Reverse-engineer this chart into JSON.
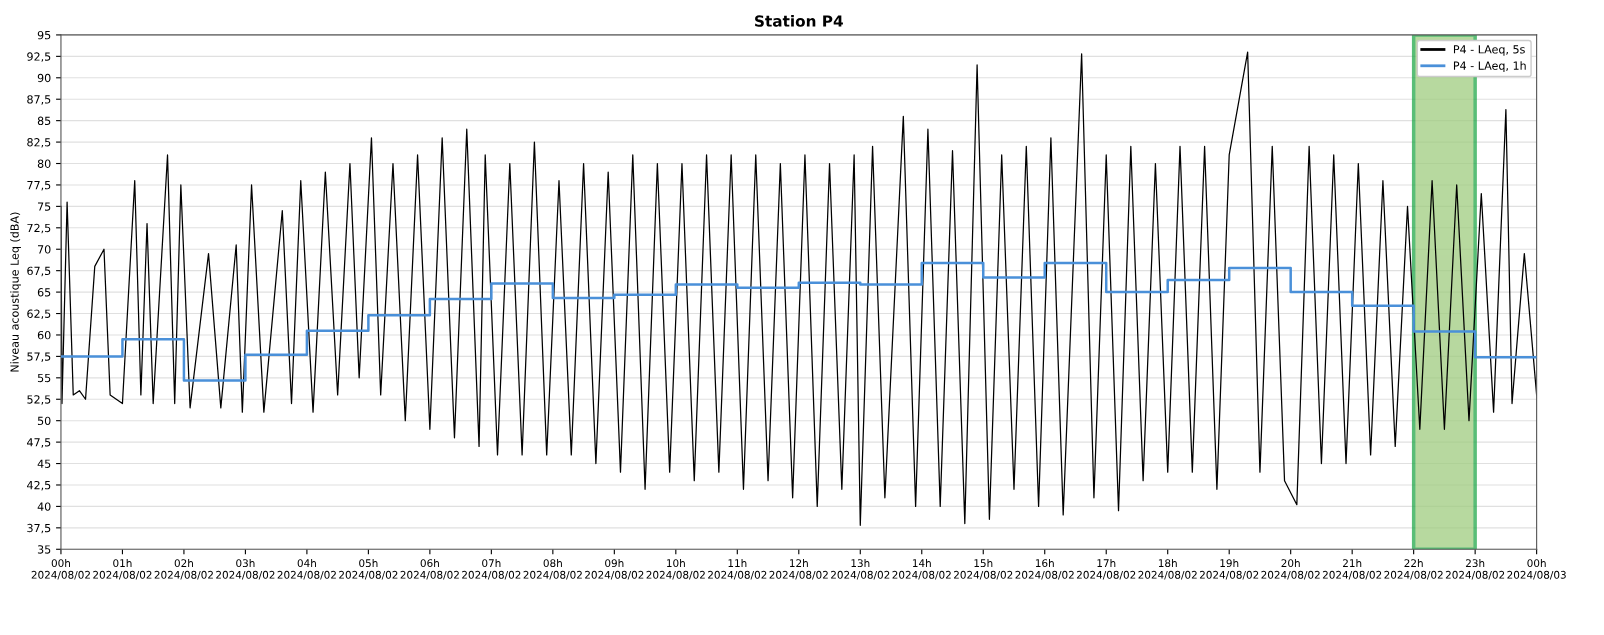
{
  "chart_data": {
    "type": "line",
    "title": "Station P4",
    "ylabel": "Niveau acoustique Leq (dBA)",
    "xlim": [
      "2024-08-02T00:00",
      "2024-08-03T00:00"
    ],
    "ylim": [
      35,
      95
    ],
    "xticks": [
      {
        "value": "2024-08-02T00:00",
        "label": "00h\n2024/08/02"
      },
      {
        "value": "2024-08-02T01:00",
        "label": "01h\n2024/08/02"
      },
      {
        "value": "2024-08-02T02:00",
        "label": "02h\n2024/08/02"
      },
      {
        "value": "2024-08-02T03:00",
        "label": "03h\n2024/08/02"
      },
      {
        "value": "2024-08-02T04:00",
        "label": "04h\n2024/08/02"
      },
      {
        "value": "2024-08-02T05:00",
        "label": "05h\n2024/08/02"
      },
      {
        "value": "2024-08-02T06:00",
        "label": "06h\n2024/08/02"
      },
      {
        "value": "2024-08-02T07:00",
        "label": "07h\n2024/08/02"
      },
      {
        "value": "2024-08-02T08:00",
        "label": "08h\n2024/08/02"
      },
      {
        "value": "2024-08-02T09:00",
        "label": "09h\n2024/08/02"
      },
      {
        "value": "2024-08-02T10:00",
        "label": "10h\n2024/08/02"
      },
      {
        "value": "2024-08-02T11:00",
        "label": "11h\n2024/08/02"
      },
      {
        "value": "2024-08-02T12:00",
        "label": "12h\n2024/08/02"
      },
      {
        "value": "2024-08-02T13:00",
        "label": "13h\n2024/08/02"
      },
      {
        "value": "2024-08-02T14:00",
        "label": "14h\n2024/08/02"
      },
      {
        "value": "2024-08-02T15:00",
        "label": "15h\n2024/08/02"
      },
      {
        "value": "2024-08-02T16:00",
        "label": "16h\n2024/08/02"
      },
      {
        "value": "2024-08-02T17:00",
        "label": "17h\n2024/08/02"
      },
      {
        "value": "2024-08-02T18:00",
        "label": "18h\n2024/08/02"
      },
      {
        "value": "2024-08-02T19:00",
        "label": "19h\n2024/08/02"
      },
      {
        "value": "2024-08-02T20:00",
        "label": "20h\n2024/08/02"
      },
      {
        "value": "2024-08-02T21:00",
        "label": "21h\n2024/08/02"
      },
      {
        "value": "2024-08-02T22:00",
        "label": "22h\n2024/08/02"
      },
      {
        "value": "2024-08-02T23:00",
        "label": "23h\n2024/08/02"
      },
      {
        "value": "2024-08-03T00:00",
        "label": "00h\n2024/08/03"
      }
    ],
    "yticks": [
      35,
      {
        "value": 37.5,
        "label": "37,5"
      },
      40,
      {
        "value": 42.5,
        "label": "42,5"
      },
      45,
      {
        "value": 47.5,
        "label": "47,5"
      },
      50,
      {
        "value": 52.5,
        "label": "52,5"
      },
      55,
      {
        "value": 57.5,
        "label": "57,5"
      },
      60,
      {
        "value": 62.5,
        "label": "62,5"
      },
      65,
      {
        "value": 67.5,
        "label": "67,5"
      },
      70,
      {
        "value": 72.5,
        "label": "72,5"
      },
      75,
      {
        "value": 77.5,
        "label": "77,5"
      },
      80,
      {
        "value": 82.5,
        "label": "82,5"
      },
      85,
      {
        "value": 87.5,
        "label": "87,5"
      },
      90,
      {
        "value": 92.5,
        "label": "92,5"
      },
      95
    ],
    "grid": "y",
    "legend": "top right",
    "bands": [
      {
        "axis": "x",
        "from": "2024-08-02T22:00",
        "to": "2024-08-02T23:00",
        "color": "#9fcc7f"
      }
    ],
    "series": [
      {
        "name": "P4 - LAeq, 5s",
        "color": "#000000",
        "x": [
          "2024-08-02T00:00",
          "2024-08-02T00:01",
          "2024-08-02T00:06",
          "2024-08-02T00:12",
          "2024-08-02T00:18",
          "2024-08-02T00:24",
          "2024-08-02T00:33",
          "2024-08-02T00:42",
          "2024-08-02T00:48",
          "2024-08-02T01:00",
          "2024-08-02T01:12",
          "2024-08-02T01:18",
          "2024-08-02T01:24",
          "2024-08-02T01:30",
          "2024-08-02T01:44",
          "2024-08-02T01:51",
          "2024-08-02T01:57",
          "2024-08-02T02:06",
          "2024-08-02T02:24",
          "2024-08-02T02:36",
          "2024-08-02T02:51",
          "2024-08-02T02:57",
          "2024-08-02T03:06",
          "2024-08-02T03:18",
          "2024-08-02T03:36",
          "2024-08-02T03:45",
          "2024-08-02T03:54",
          "2024-08-02T04:06",
          "2024-08-02T04:18",
          "2024-08-02T04:30",
          "2024-08-02T04:42",
          "2024-08-02T04:51",
          "2024-08-02T05:03",
          "2024-08-02T05:12",
          "2024-08-02T05:24",
          "2024-08-02T05:36",
          "2024-08-02T05:48",
          "2024-08-02T06:00",
          "2024-08-02T06:12",
          "2024-08-02T06:24",
          "2024-08-02T06:36",
          "2024-08-02T06:48",
          "2024-08-02T06:54",
          "2024-08-02T07:06",
          "2024-08-02T07:18",
          "2024-08-02T07:30",
          "2024-08-02T07:42",
          "2024-08-02T07:54",
          "2024-08-02T08:06",
          "2024-08-02T08:18",
          "2024-08-02T08:30",
          "2024-08-02T08:42",
          "2024-08-02T08:54",
          "2024-08-02T09:06",
          "2024-08-02T09:18",
          "2024-08-02T09:30",
          "2024-08-02T09:42",
          "2024-08-02T09:54",
          "2024-08-02T10:06",
          "2024-08-02T10:18",
          "2024-08-02T10:30",
          "2024-08-02T10:42",
          "2024-08-02T10:54",
          "2024-08-02T11:06",
          "2024-08-02T11:18",
          "2024-08-02T11:30",
          "2024-08-02T11:42",
          "2024-08-02T11:54",
          "2024-08-02T12:06",
          "2024-08-02T12:18",
          "2024-08-02T12:30",
          "2024-08-02T12:42",
          "2024-08-02T12:54",
          "2024-08-02T13:00",
          "2024-08-02T13:12",
          "2024-08-02T13:24",
          "2024-08-02T13:42",
          "2024-08-02T13:54",
          "2024-08-02T14:06",
          "2024-08-02T14:18",
          "2024-08-02T14:30",
          "2024-08-02T14:42",
          "2024-08-02T14:54",
          "2024-08-02T15:06",
          "2024-08-02T15:18",
          "2024-08-02T15:30",
          "2024-08-02T15:42",
          "2024-08-02T15:54",
          "2024-08-02T16:06",
          "2024-08-02T16:18",
          "2024-08-02T16:36",
          "2024-08-02T16:48",
          "2024-08-02T17:00",
          "2024-08-02T17:12",
          "2024-08-02T17:24",
          "2024-08-02T17:36",
          "2024-08-02T17:48",
          "2024-08-02T18:00",
          "2024-08-02T18:12",
          "2024-08-02T18:24",
          "2024-08-02T18:36",
          "2024-08-02T18:48",
          "2024-08-02T19:00",
          "2024-08-02T19:18",
          "2024-08-02T19:30",
          "2024-08-02T19:42",
          "2024-08-02T19:54",
          "2024-08-02T20:06",
          "2024-08-02T20:18",
          "2024-08-02T20:30",
          "2024-08-02T20:42",
          "2024-08-02T20:54",
          "2024-08-02T21:06",
          "2024-08-02T21:18",
          "2024-08-02T21:30",
          "2024-08-02T21:42",
          "2024-08-02T21:54",
          "2024-08-02T22:06",
          "2024-08-02T22:18",
          "2024-08-02T22:30",
          "2024-08-02T22:42",
          "2024-08-02T22:54",
          "2024-08-02T23:06",
          "2024-08-02T23:18",
          "2024-08-02T23:30",
          "2024-08-02T23:36",
          "2024-08-02T23:48",
          "2024-08-03T00:00"
        ],
        "values": [
          75,
          52,
          75.5,
          53,
          53.5,
          52.5,
          68,
          70,
          53,
          52,
          78,
          53,
          73,
          52,
          81,
          52,
          77.5,
          51.5,
          69.5,
          51.5,
          70.5,
          51,
          77.5,
          51,
          74.5,
          52,
          78,
          51,
          79,
          53,
          80,
          55,
          83,
          53,
          80,
          50,
          81,
          49,
          83,
          48,
          84,
          47,
          81,
          46,
          80,
          46,
          82.5,
          46,
          78,
          46,
          80,
          45,
          79,
          44,
          81,
          42,
          80,
          44,
          80,
          43,
          81,
          44,
          81,
          42,
          81,
          43,
          80,
          41,
          81,
          40,
          80,
          42,
          81,
          37.8,
          82,
          41,
          85.5,
          40,
          84,
          40,
          81.5,
          38,
          91.5,
          38.5,
          81,
          42,
          82,
          40,
          83,
          39,
          92.8,
          41,
          81,
          39.5,
          82,
          43,
          80,
          44,
          82,
          44,
          82,
          42,
          81,
          93,
          44,
          82,
          43,
          40.2,
          82,
          45,
          81,
          45,
          80,
          46,
          78,
          47,
          75,
          49,
          78,
          49,
          77.5,
          50,
          76.5,
          51,
          86.3,
          52,
          69.5,
          53
        ]
      },
      {
        "name": "P4 - LAeq, 1h",
        "color": "#4a90d9",
        "type": "step",
        "x": [
          "2024-08-02T00:00",
          "2024-08-02T01:00",
          "2024-08-02T02:00",
          "2024-08-02T03:00",
          "2024-08-02T04:00",
          "2024-08-02T05:00",
          "2024-08-02T06:00",
          "2024-08-02T07:00",
          "2024-08-02T08:00",
          "2024-08-02T09:00",
          "2024-08-02T10:00",
          "2024-08-02T11:00",
          "2024-08-02T12:00",
          "2024-08-02T13:00",
          "2024-08-02T14:00",
          "2024-08-02T15:00",
          "2024-08-02T16:00",
          "2024-08-02T17:00",
          "2024-08-02T18:00",
          "2024-08-02T19:00",
          "2024-08-02T20:00",
          "2024-08-02T21:00",
          "2024-08-02T22:00",
          "2024-08-02T23:00",
          "2024-08-03T00:00"
        ],
        "values": [
          57.5,
          59.5,
          54.7,
          57.7,
          60.5,
          62.3,
          64.2,
          66,
          64.3,
          64.7,
          65.9,
          65.5,
          66.1,
          65.9,
          68.4,
          66.7,
          68.4,
          65,
          66.4,
          67.8,
          65,
          63.4,
          60.4,
          57.4,
          57.4
        ]
      }
    ]
  }
}
